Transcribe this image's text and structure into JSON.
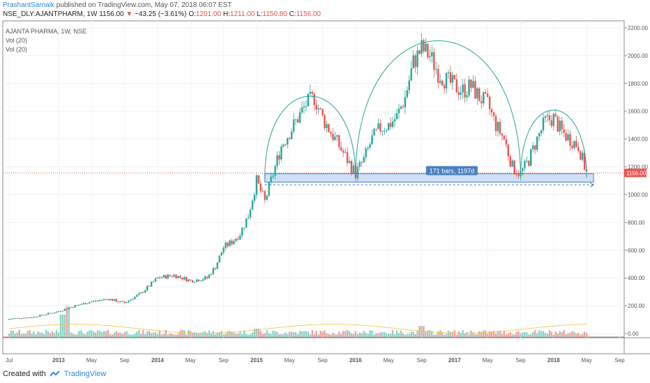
{
  "header": {
    "author": "PrashantSarnaik",
    "published": "published on TradingView.com, May 07, 2018 06:07 EST",
    "symbol": "NSE_DLY:AJANTPHARM, 1W",
    "last": "1156.00",
    "change": "−43.25 (−3.61%)",
    "o_label": "O:",
    "o_val": "1201.00",
    "h_label": "H:",
    "h_val": "1211.00",
    "l_label": "L:",
    "l_val": "1150.80",
    "c_label": "C:",
    "c_val": "1156.00"
  },
  "legend": {
    "name": "AJANTA PHARMA, 1W, NSE",
    "vol1": "Vol (20)",
    "vol2": "Vol (20)"
  },
  "footer": {
    "created_with": "Created with",
    "brand": "TradingView"
  },
  "colors": {
    "up": "#26a69a",
    "down": "#ef5350",
    "vol_up": "#8ed3c7",
    "vol_down": "#f3a0a0",
    "arc": "#26a69a",
    "vol_ma": "#f5c242",
    "box": "#cfe0f5",
    "box_border": "#4a7fc1",
    "tag": "#4a7fc1",
    "price_line": "#ef5350",
    "last_tag": "#ef5350"
  },
  "chart_data": {
    "type": "candlestick",
    "title": "AJANTA PHARMA, 1W, NSE",
    "ylim": [
      0,
      2200
    ],
    "y_ticks": [
      "2200.00",
      "2000.00",
      "1800.00",
      "1600.00",
      "1400.00",
      "1200.00",
      "1000.00",
      "800.00",
      "600.00",
      "400.00",
      "200.00",
      "0.00"
    ],
    "y_tick_values": [
      2200,
      2000,
      1800,
      1600,
      1400,
      1200,
      1000,
      800,
      600,
      400,
      200,
      0
    ],
    "x_ticks": [
      "Jul",
      "2013",
      "May",
      "Sep",
      "2014",
      "May",
      "Sep",
      "2015",
      "May",
      "Sep",
      "2016",
      "May",
      "Sep",
      "2017",
      "May",
      "Sep",
      "2018",
      "May",
      "Sep"
    ],
    "x_range": [
      "2012-07",
      "2018-09"
    ],
    "last_price": 1156.0,
    "last_price_label": "1156.00",
    "support_level_range": [
      1090,
      1150
    ],
    "measure_label": "171 bars, 1197d",
    "close_series": [
      {
        "t": "2012-07",
        "v": 105
      },
      {
        "t": "2012-10",
        "v": 120
      },
      {
        "t": "2013-01",
        "v": 160
      },
      {
        "t": "2013-03",
        "v": 200
      },
      {
        "t": "2013-05",
        "v": 230
      },
      {
        "t": "2013-07",
        "v": 250
      },
      {
        "t": "2013-09",
        "v": 220
      },
      {
        "t": "2013-11",
        "v": 290
      },
      {
        "t": "2014-01",
        "v": 400
      },
      {
        "t": "2014-03",
        "v": 420
      },
      {
        "t": "2014-05",
        "v": 380
      },
      {
        "t": "2014-07",
        "v": 400
      },
      {
        "t": "2014-08",
        "v": 480
      },
      {
        "t": "2014-09",
        "v": 620
      },
      {
        "t": "2014-10",
        "v": 660
      },
      {
        "t": "2014-11",
        "v": 720
      },
      {
        "t": "2014-12",
        "v": 850
      },
      {
        "t": "2015-01",
        "v": 1100
      },
      {
        "t": "2015-02",
        "v": 950
      },
      {
        "t": "2015-03",
        "v": 1150
      },
      {
        "t": "2015-04",
        "v": 1350
      },
      {
        "t": "2015-05",
        "v": 1450
      },
      {
        "t": "2015-06",
        "v": 1550
      },
      {
        "t": "2015-07",
        "v": 1650
      },
      {
        "t": "2015-08",
        "v": 1700
      },
      {
        "t": "2015-09",
        "v": 1550
      },
      {
        "t": "2015-10",
        "v": 1450
      },
      {
        "t": "2015-11",
        "v": 1350
      },
      {
        "t": "2015-12",
        "v": 1250
      },
      {
        "t": "2016-01",
        "v": 1150
      },
      {
        "t": "2016-02",
        "v": 1250
      },
      {
        "t": "2016-03",
        "v": 1400
      },
      {
        "t": "2016-04",
        "v": 1480
      },
      {
        "t": "2016-05",
        "v": 1500
      },
      {
        "t": "2016-06",
        "v": 1560
      },
      {
        "t": "2016-07",
        "v": 1700
      },
      {
        "t": "2016-08",
        "v": 1950
      },
      {
        "t": "2016-09",
        "v": 2050
      },
      {
        "t": "2016-10",
        "v": 2000
      },
      {
        "t": "2016-11",
        "v": 1880
      },
      {
        "t": "2016-12",
        "v": 1820
      },
      {
        "t": "2017-01",
        "v": 1780
      },
      {
        "t": "2017-02",
        "v": 1750
      },
      {
        "t": "2017-03",
        "v": 1780
      },
      {
        "t": "2017-04",
        "v": 1700
      },
      {
        "t": "2017-05",
        "v": 1650
      },
      {
        "t": "2017-06",
        "v": 1500
      },
      {
        "t": "2017-07",
        "v": 1400
      },
      {
        "t": "2017-08",
        "v": 1200
      },
      {
        "t": "2017-09",
        "v": 1150
      },
      {
        "t": "2017-10",
        "v": 1250
      },
      {
        "t": "2017-11",
        "v": 1400
      },
      {
        "t": "2017-12",
        "v": 1530
      },
      {
        "t": "2018-01",
        "v": 1550
      },
      {
        "t": "2018-02",
        "v": 1450
      },
      {
        "t": "2018-03",
        "v": 1400
      },
      {
        "t": "2018-04",
        "v": 1350
      },
      {
        "t": "2018-05",
        "v": 1156
      }
    ],
    "volume_ylim": [
      0,
      300
    ],
    "volume_ticks": [
      "200.00",
      "0.00"
    ]
  }
}
